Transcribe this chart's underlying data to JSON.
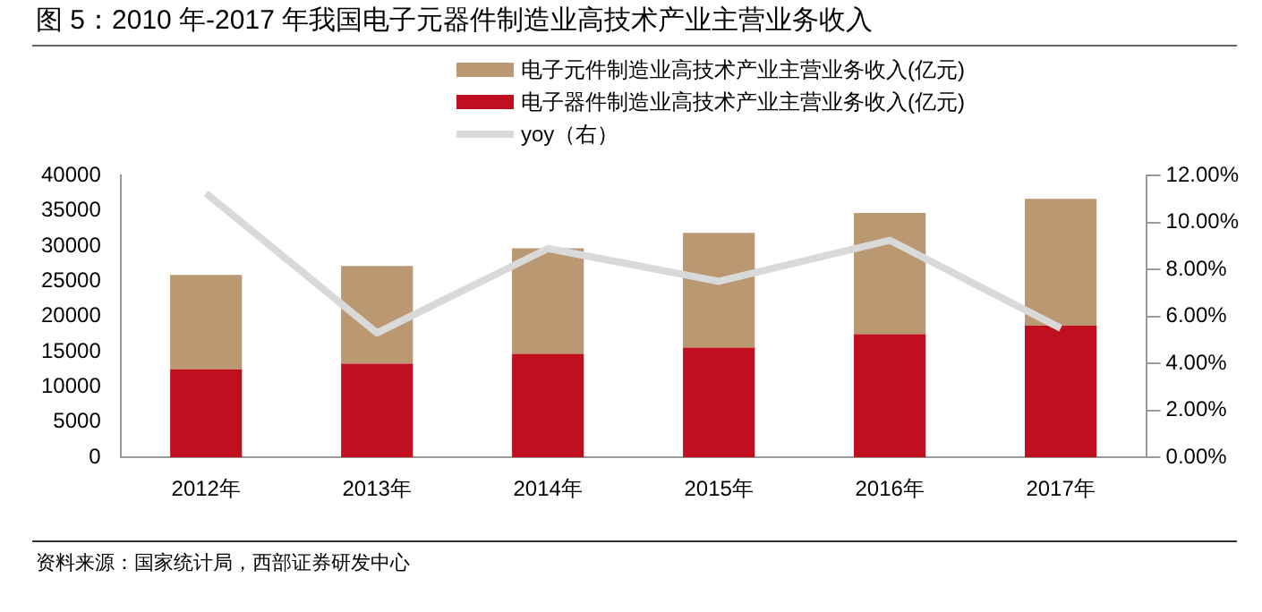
{
  "chart_data": {
    "type": "bar",
    "title": "图 5：2010 年-2017 年我国电子元器件制造业高技术产业主营业务收入",
    "categories": [
      "2012年",
      "2013年",
      "2014年",
      "2015年",
      "2016年",
      "2017年"
    ],
    "stacked": true,
    "series": [
      {
        "name": "电子器件制造业高技术产业主营业务收入(亿元)",
        "color": "#c00f1e",
        "values": [
          12500,
          13300,
          14700,
          15600,
          17500,
          18700
        ]
      },
      {
        "name": "电子元件制造业高技术产业主营业务收入(亿元)",
        "color": "#b99872",
        "values": [
          13400,
          13900,
          15000,
          16300,
          17200,
          18000
        ]
      },
      {
        "name": "yoy（右）",
        "type": "line",
        "axis": "y2",
        "color": "#d9d9d9",
        "values": [
          11.25,
          5.3,
          8.9,
          7.5,
          9.25,
          5.5
        ]
      }
    ],
    "ylim": [
      0,
      40000
    ],
    "yticks": [
      0,
      5000,
      10000,
      15000,
      20000,
      25000,
      30000,
      35000,
      40000
    ],
    "y2lim": [
      0,
      12
    ],
    "y2ticks": [
      {
        "value": 0,
        "label": "0.00%"
      },
      {
        "value": 2,
        "label": "2.00%"
      },
      {
        "value": 4,
        "label": "4.00%"
      },
      {
        "value": 6,
        "label": "6.00%"
      },
      {
        "value": 8,
        "label": "8.00%"
      },
      {
        "value": 10,
        "label": "10.00%"
      },
      {
        "value": 12,
        "label": "12.00%"
      }
    ],
    "grid": false,
    "legend": "top",
    "marker": "none",
    "annotations": [
      "资料来源：国家统计局，西部证券研发中心"
    ]
  }
}
